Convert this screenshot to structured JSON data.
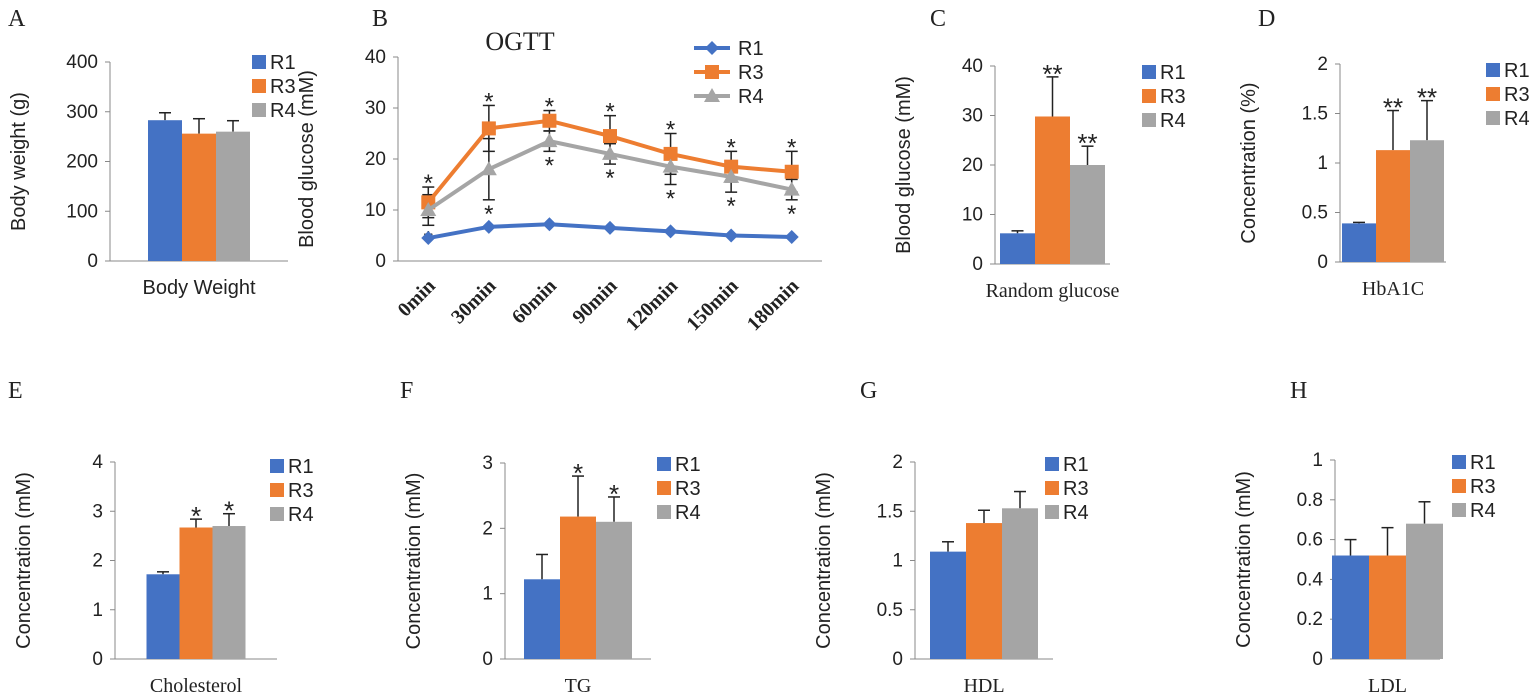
{
  "chart_data": [
    {
      "panel": "A",
      "type": "bar",
      "y_label": "Body weight (g)",
      "categories": [
        "Body Weight"
      ],
      "ylim": [
        0,
        400
      ],
      "yticks": [
        0,
        100,
        200,
        300,
        400
      ],
      "series": [
        {
          "name": "R1",
          "color": "#4472c4",
          "values": [
            283
          ],
          "errors": [
            15
          ]
        },
        {
          "name": "R3",
          "color": "#ed7d31",
          "values": [
            256
          ],
          "errors": [
            30
          ]
        },
        {
          "name": "R4",
          "color": "#a5a5a5",
          "values": [
            260
          ],
          "errors": [
            22
          ]
        }
      ]
    },
    {
      "panel": "B",
      "type": "line",
      "title": "OGTT",
      "y_label": "Blood glucose (mM)",
      "categories": [
        "0min",
        "30min",
        "60min",
        "90min",
        "120min",
        "150min",
        "180min"
      ],
      "ylim": [
        0,
        40
      ],
      "yticks": [
        0,
        10,
        20,
        30,
        40
      ],
      "series": [
        {
          "name": "R1",
          "color": "#4472c4",
          "marker": "diamond",
          "values": [
            4.5,
            6.7,
            7.2,
            6.5,
            5.8,
            5,
            4.7
          ]
        },
        {
          "name": "R3",
          "color": "#ed7d31",
          "marker": "square",
          "values": [
            11.5,
            26,
            27.5,
            24.5,
            21,
            18.5,
            17.5
          ],
          "errors": [
            3,
            4.5,
            2,
            4,
            4,
            3,
            4
          ],
          "significance": [
            "*",
            "*",
            "*",
            "*",
            "*",
            "*",
            "*"
          ],
          "significance_position": "above"
        },
        {
          "name": "R4",
          "color": "#a5a5a5",
          "marker": "triangle",
          "values": [
            10,
            18,
            23.5,
            21,
            18.5,
            16.5,
            14
          ],
          "errors": [
            3,
            6,
            2,
            2,
            3.5,
            3,
            2
          ],
          "significance": [
            "*",
            "*",
            "*",
            "*",
            "*",
            "*",
            "*"
          ],
          "significance_position": "below"
        }
      ]
    },
    {
      "panel": "C",
      "type": "bar",
      "y_label": "Blood glucose (mM)",
      "categories": [
        "Random glucose"
      ],
      "ylim": [
        0,
        40
      ],
      "yticks": [
        0,
        10,
        20,
        30,
        40
      ],
      "series": [
        {
          "name": "R1",
          "color": "#4472c4",
          "values": [
            6.2
          ],
          "errors": [
            0.5
          ]
        },
        {
          "name": "R3",
          "color": "#ed7d31",
          "values": [
            29.8
          ],
          "errors": [
            8
          ],
          "significance": [
            "**"
          ]
        },
        {
          "name": "R4",
          "color": "#a5a5a5",
          "values": [
            20
          ],
          "errors": [
            3.8
          ],
          "significance": [
            "**"
          ]
        }
      ]
    },
    {
      "panel": "D",
      "type": "bar",
      "y_label": "Concentration (%)",
      "categories": [
        "HbA1C"
      ],
      "ylim": [
        0,
        2
      ],
      "yticks": [
        0,
        0.5,
        1,
        1.5,
        2
      ],
      "series": [
        {
          "name": "R1",
          "color": "#4472c4",
          "values": [
            0.39
          ],
          "errors": [
            0.01
          ]
        },
        {
          "name": "R3",
          "color": "#ed7d31",
          "values": [
            1.13
          ],
          "errors": [
            0.4
          ],
          "significance": [
            "**"
          ]
        },
        {
          "name": "R4",
          "color": "#a5a5a5",
          "values": [
            1.23
          ],
          "errors": [
            0.4
          ],
          "significance": [
            "**"
          ]
        }
      ]
    },
    {
      "panel": "E",
      "type": "bar",
      "y_label": "Concentration (mM)",
      "categories": [
        "Cholesterol"
      ],
      "ylim": [
        0,
        4
      ],
      "yticks": [
        0,
        1,
        2,
        3,
        4
      ],
      "series": [
        {
          "name": "R1",
          "color": "#4472c4",
          "values": [
            1.72
          ],
          "errors": [
            0.05
          ]
        },
        {
          "name": "R3",
          "color": "#ed7d31",
          "values": [
            2.67
          ],
          "errors": [
            0.17
          ],
          "significance": [
            "*"
          ]
        },
        {
          "name": "R4",
          "color": "#a5a5a5",
          "values": [
            2.7
          ],
          "errors": [
            0.25
          ],
          "significance": [
            "*"
          ]
        }
      ]
    },
    {
      "panel": "F",
      "type": "bar",
      "y_label": "Concentration (mM)",
      "categories": [
        "TG"
      ],
      "ylim": [
        0,
        3
      ],
      "yticks": [
        0,
        1,
        2,
        3
      ],
      "series": [
        {
          "name": "R1",
          "color": "#4472c4",
          "values": [
            1.22
          ],
          "errors": [
            0.38
          ]
        },
        {
          "name": "R3",
          "color": "#ed7d31",
          "values": [
            2.18
          ],
          "errors": [
            0.62
          ],
          "significance": [
            "*"
          ]
        },
        {
          "name": "R4",
          "color": "#a5a5a5",
          "values": [
            2.1
          ],
          "errors": [
            0.38
          ],
          "significance": [
            "*"
          ]
        }
      ]
    },
    {
      "panel": "G",
      "type": "bar",
      "y_label": "Concentration (mM)",
      "categories": [
        "HDL"
      ],
      "ylim": [
        0,
        2
      ],
      "yticks": [
        0,
        0.5,
        1,
        1.5,
        2
      ],
      "series": [
        {
          "name": "R1",
          "color": "#4472c4",
          "values": [
            1.09
          ],
          "errors": [
            0.1
          ]
        },
        {
          "name": "R3",
          "color": "#ed7d31",
          "values": [
            1.38
          ],
          "errors": [
            0.13
          ]
        },
        {
          "name": "R4",
          "color": "#a5a5a5",
          "values": [
            1.53
          ],
          "errors": [
            0.17
          ]
        }
      ]
    },
    {
      "panel": "H",
      "type": "bar",
      "y_label": "Concentration (mM)",
      "categories": [
        "LDL"
      ],
      "ylim": [
        0,
        1
      ],
      "yticks": [
        0,
        0.2,
        0.4,
        0.6,
        0.8,
        1
      ],
      "series": [
        {
          "name": "R1",
          "color": "#4472c4",
          "values": [
            0.52
          ],
          "errors": [
            0.08
          ]
        },
        {
          "name": "R3",
          "color": "#ed7d31",
          "values": [
            0.52
          ],
          "errors": [
            0.14
          ]
        },
        {
          "name": "R4",
          "color": "#a5a5a5",
          "values": [
            0.68
          ],
          "errors": [
            0.11
          ]
        }
      ]
    }
  ]
}
